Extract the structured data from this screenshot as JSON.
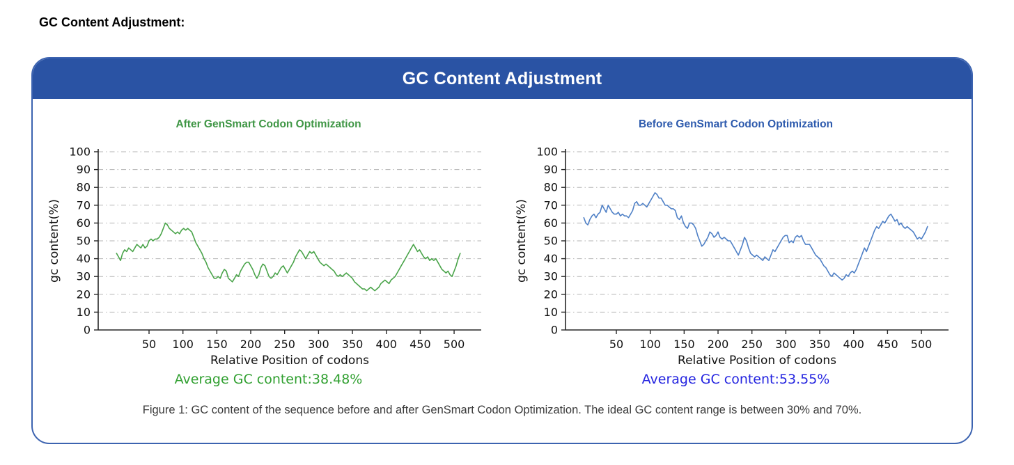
{
  "page": {
    "heading": "GC Content Adjustment:"
  },
  "panel": {
    "title": "GC Content Adjustment",
    "header_bg": "#2a53a4",
    "border_color": "#3c63b0",
    "caption": "Figure 1: GC content of the sequence before and after GenSmart Codon Optimization. The ideal GC content range is between 30% and 70%."
  },
  "chart_data": [
    {
      "type": "line",
      "title": "After GenSmart Codon Optimization",
      "title_color": "#3f9645",
      "line_color": "#4aa44a",
      "avg_label": "Average GC content:38.48%",
      "avg_value_pct": 38.48,
      "avg_color": "#31a031",
      "xlabel": "Relative Position of codons",
      "ylabel": "gc content(%)",
      "x_domain": [
        -25,
        540
      ],
      "y_domain": [
        0,
        100
      ],
      "x_ticks": [
        50,
        100,
        150,
        200,
        250,
        300,
        350,
        400,
        450,
        500
      ],
      "y_ticks": [
        0,
        10,
        20,
        30,
        40,
        50,
        60,
        70,
        80,
        90,
        100
      ],
      "grid": "horizontal-dash-dot",
      "points": [
        [
          2,
          43
        ],
        [
          5,
          41
        ],
        [
          8,
          39
        ],
        [
          11,
          43
        ],
        [
          14,
          45
        ],
        [
          17,
          44
        ],
        [
          20,
          46
        ],
        [
          23,
          45
        ],
        [
          26,
          44
        ],
        [
          29,
          46
        ],
        [
          32,
          48
        ],
        [
          35,
          47
        ],
        [
          38,
          46
        ],
        [
          41,
          48
        ],
        [
          44,
          46
        ],
        [
          47,
          47
        ],
        [
          50,
          50
        ],
        [
          53,
          51
        ],
        [
          56,
          50
        ],
        [
          59,
          51
        ],
        [
          62,
          51
        ],
        [
          65,
          52
        ],
        [
          68,
          54
        ],
        [
          71,
          57
        ],
        [
          74,
          60
        ],
        [
          77,
          59
        ],
        [
          80,
          57
        ],
        [
          83,
          56
        ],
        [
          86,
          55
        ],
        [
          89,
          54
        ],
        [
          92,
          55
        ],
        [
          95,
          54
        ],
        [
          98,
          56
        ],
        [
          101,
          57
        ],
        [
          104,
          56
        ],
        [
          107,
          57
        ],
        [
          110,
          56
        ],
        [
          113,
          55
        ],
        [
          116,
          52
        ],
        [
          119,
          49
        ],
        [
          122,
          47
        ],
        [
          125,
          45
        ],
        [
          128,
          43
        ],
        [
          131,
          40
        ],
        [
          134,
          38
        ],
        [
          137,
          35
        ],
        [
          140,
          33
        ],
        [
          143,
          31
        ],
        [
          146,
          29
        ],
        [
          149,
          29
        ],
        [
          152,
          30
        ],
        [
          155,
          29
        ],
        [
          158,
          32
        ],
        [
          161,
          34
        ],
        [
          164,
          33
        ],
        [
          167,
          29
        ],
        [
          170,
          28
        ],
        [
          173,
          27
        ],
        [
          176,
          29
        ],
        [
          179,
          31
        ],
        [
          182,
          30
        ],
        [
          185,
          33
        ],
        [
          188,
          35
        ],
        [
          191,
          37
        ],
        [
          194,
          38
        ],
        [
          197,
          38
        ],
        [
          200,
          36
        ],
        [
          203,
          34
        ],
        [
          206,
          31
        ],
        [
          209,
          29
        ],
        [
          212,
          31
        ],
        [
          215,
          35
        ],
        [
          218,
          37
        ],
        [
          221,
          36
        ],
        [
          224,
          33
        ],
        [
          227,
          30
        ],
        [
          230,
          29
        ],
        [
          233,
          30
        ],
        [
          236,
          32
        ],
        [
          239,
          31
        ],
        [
          242,
          33
        ],
        [
          245,
          35
        ],
        [
          248,
          36
        ],
        [
          251,
          34
        ],
        [
          254,
          32
        ],
        [
          257,
          34
        ],
        [
          260,
          36
        ],
        [
          263,
          38
        ],
        [
          266,
          41
        ],
        [
          269,
          43
        ],
        [
          272,
          45
        ],
        [
          275,
          44
        ],
        [
          278,
          42
        ],
        [
          281,
          40
        ],
        [
          284,
          42
        ],
        [
          287,
          44
        ],
        [
          290,
          43
        ],
        [
          293,
          44
        ],
        [
          296,
          42
        ],
        [
          299,
          40
        ],
        [
          302,
          38
        ],
        [
          305,
          37
        ],
        [
          308,
          36
        ],
        [
          311,
          37
        ],
        [
          314,
          36
        ],
        [
          317,
          35
        ],
        [
          320,
          34
        ],
        [
          323,
          33
        ],
        [
          326,
          31
        ],
        [
          329,
          30
        ],
        [
          332,
          31
        ],
        [
          335,
          30
        ],
        [
          338,
          31
        ],
        [
          341,
          32
        ],
        [
          344,
          31
        ],
        [
          347,
          30
        ],
        [
          350,
          29
        ],
        [
          353,
          27
        ],
        [
          356,
          26
        ],
        [
          359,
          25
        ],
        [
          362,
          24
        ],
        [
          365,
          23
        ],
        [
          368,
          23
        ],
        [
          371,
          22
        ],
        [
          374,
          23
        ],
        [
          377,
          24
        ],
        [
          380,
          23
        ],
        [
          383,
          22
        ],
        [
          386,
          23
        ],
        [
          389,
          24
        ],
        [
          392,
          26
        ],
        [
          395,
          27
        ],
        [
          398,
          28
        ],
        [
          401,
          27
        ],
        [
          404,
          26
        ],
        [
          407,
          28
        ],
        [
          410,
          29
        ],
        [
          413,
          30
        ],
        [
          416,
          32
        ],
        [
          419,
          34
        ],
        [
          422,
          36
        ],
        [
          425,
          38
        ],
        [
          428,
          40
        ],
        [
          431,
          42
        ],
        [
          434,
          44
        ],
        [
          437,
          46
        ],
        [
          440,
          48
        ],
        [
          443,
          46
        ],
        [
          446,
          44
        ],
        [
          449,
          45
        ],
        [
          452,
          43
        ],
        [
          455,
          41
        ],
        [
          458,
          40
        ],
        [
          461,
          41
        ],
        [
          464,
          39
        ],
        [
          467,
          40
        ],
        [
          470,
          39
        ],
        [
          473,
          40
        ],
        [
          476,
          38
        ],
        [
          479,
          36
        ],
        [
          482,
          34
        ],
        [
          485,
          33
        ],
        [
          488,
          32
        ],
        [
          491,
          33
        ],
        [
          494,
          31
        ],
        [
          497,
          30
        ],
        [
          500,
          33
        ],
        [
          503,
          36
        ],
        [
          506,
          40
        ],
        [
          509,
          43
        ]
      ]
    },
    {
      "type": "line",
      "title": "Before GenSmart Codon Optimization",
      "title_color": "#2d5aad",
      "line_color": "#4f80c6",
      "avg_label": "Average GC content:53.55%",
      "avg_value_pct": 53.55,
      "avg_color": "#2424e0",
      "xlabel": "Relative Position of codons",
      "ylabel": "gc content(%)",
      "x_domain": [
        -25,
        540
      ],
      "y_domain": [
        0,
        100
      ],
      "x_ticks": [
        50,
        100,
        150,
        200,
        250,
        300,
        350,
        400,
        450,
        500
      ],
      "y_ticks": [
        0,
        10,
        20,
        30,
        40,
        50,
        60,
        70,
        80,
        90,
        100
      ],
      "grid": "horizontal-dash-dot",
      "points": [
        [
          2,
          63
        ],
        [
          5,
          60
        ],
        [
          8,
          59
        ],
        [
          11,
          62
        ],
        [
          14,
          64
        ],
        [
          17,
          65
        ],
        [
          20,
          63
        ],
        [
          23,
          65
        ],
        [
          26,
          66
        ],
        [
          29,
          70
        ],
        [
          32,
          68
        ],
        [
          35,
          66
        ],
        [
          38,
          70
        ],
        [
          41,
          68
        ],
        [
          44,
          66
        ],
        [
          47,
          65
        ],
        [
          50,
          65
        ],
        [
          53,
          66
        ],
        [
          56,
          64
        ],
        [
          59,
          65
        ],
        [
          62,
          64
        ],
        [
          65,
          64
        ],
        [
          68,
          63
        ],
        [
          71,
          65
        ],
        [
          74,
          67
        ],
        [
          77,
          71
        ],
        [
          80,
          72
        ],
        [
          83,
          70
        ],
        [
          86,
          70
        ],
        [
          89,
          71
        ],
        [
          92,
          70
        ],
        [
          95,
          69
        ],
        [
          98,
          71
        ],
        [
          101,
          73
        ],
        [
          104,
          75
        ],
        [
          107,
          77
        ],
        [
          110,
          76
        ],
        [
          113,
          74
        ],
        [
          116,
          74
        ],
        [
          119,
          72
        ],
        [
          122,
          70
        ],
        [
          125,
          70
        ],
        [
          128,
          69
        ],
        [
          131,
          68
        ],
        [
          134,
          68
        ],
        [
          137,
          67
        ],
        [
          140,
          63
        ],
        [
          143,
          62
        ],
        [
          146,
          64
        ],
        [
          149,
          60
        ],
        [
          152,
          58
        ],
        [
          155,
          57
        ],
        [
          158,
          60
        ],
        [
          161,
          60
        ],
        [
          164,
          59
        ],
        [
          167,
          57
        ],
        [
          170,
          53
        ],
        [
          173,
          50
        ],
        [
          176,
          47
        ],
        [
          179,
          48
        ],
        [
          182,
          50
        ],
        [
          185,
          52
        ],
        [
          188,
          55
        ],
        [
          191,
          54
        ],
        [
          194,
          52
        ],
        [
          197,
          53
        ],
        [
          200,
          55
        ],
        [
          203,
          52
        ],
        [
          206,
          51
        ],
        [
          209,
          52
        ],
        [
          212,
          51
        ],
        [
          215,
          50
        ],
        [
          218,
          50
        ],
        [
          221,
          48
        ],
        [
          224,
          46
        ],
        [
          227,
          44
        ],
        [
          230,
          42
        ],
        [
          233,
          45
        ],
        [
          236,
          48
        ],
        [
          239,
          52
        ],
        [
          242,
          50
        ],
        [
          245,
          46
        ],
        [
          248,
          43
        ],
        [
          251,
          42
        ],
        [
          254,
          41
        ],
        [
          257,
          42
        ],
        [
          260,
          41
        ],
        [
          263,
          40
        ],
        [
          266,
          39
        ],
        [
          269,
          41
        ],
        [
          272,
          40
        ],
        [
          275,
          39
        ],
        [
          278,
          42
        ],
        [
          281,
          45
        ],
        [
          284,
          44
        ],
        [
          287,
          46
        ],
        [
          290,
          48
        ],
        [
          293,
          50
        ],
        [
          296,
          52
        ],
        [
          299,
          53
        ],
        [
          302,
          53
        ],
        [
          305,
          49
        ],
        [
          308,
          50
        ],
        [
          311,
          49
        ],
        [
          314,
          52
        ],
        [
          317,
          53
        ],
        [
          320,
          52
        ],
        [
          323,
          53
        ],
        [
          326,
          50
        ],
        [
          329,
          48
        ],
        [
          332,
          48
        ],
        [
          335,
          48
        ],
        [
          338,
          46
        ],
        [
          341,
          44
        ],
        [
          344,
          42
        ],
        [
          347,
          41
        ],
        [
          350,
          40
        ],
        [
          353,
          38
        ],
        [
          356,
          36
        ],
        [
          359,
          35
        ],
        [
          362,
          33
        ],
        [
          365,
          31
        ],
        [
          368,
          30
        ],
        [
          371,
          32
        ],
        [
          374,
          31
        ],
        [
          377,
          30
        ],
        [
          380,
          29
        ],
        [
          383,
          28
        ],
        [
          386,
          29
        ],
        [
          389,
          31
        ],
        [
          392,
          30
        ],
        [
          395,
          32
        ],
        [
          398,
          33
        ],
        [
          401,
          32
        ],
        [
          404,
          34
        ],
        [
          407,
          37
        ],
        [
          410,
          40
        ],
        [
          413,
          43
        ],
        [
          416,
          46
        ],
        [
          419,
          44
        ],
        [
          422,
          47
        ],
        [
          425,
          50
        ],
        [
          428,
          53
        ],
        [
          431,
          56
        ],
        [
          434,
          58
        ],
        [
          437,
          57
        ],
        [
          440,
          59
        ],
        [
          443,
          61
        ],
        [
          446,
          60
        ],
        [
          449,
          62
        ],
        [
          452,
          64
        ],
        [
          455,
          65
        ],
        [
          458,
          63
        ],
        [
          461,
          61
        ],
        [
          464,
          62
        ],
        [
          467,
          59
        ],
        [
          470,
          60
        ],
        [
          473,
          58
        ],
        [
          476,
          57
        ],
        [
          479,
          58
        ],
        [
          482,
          57
        ],
        [
          485,
          56
        ],
        [
          488,
          55
        ],
        [
          491,
          53
        ],
        [
          494,
          51
        ],
        [
          497,
          52
        ],
        [
          500,
          51
        ],
        [
          503,
          53
        ],
        [
          506,
          55
        ],
        [
          509,
          58
        ]
      ]
    }
  ]
}
